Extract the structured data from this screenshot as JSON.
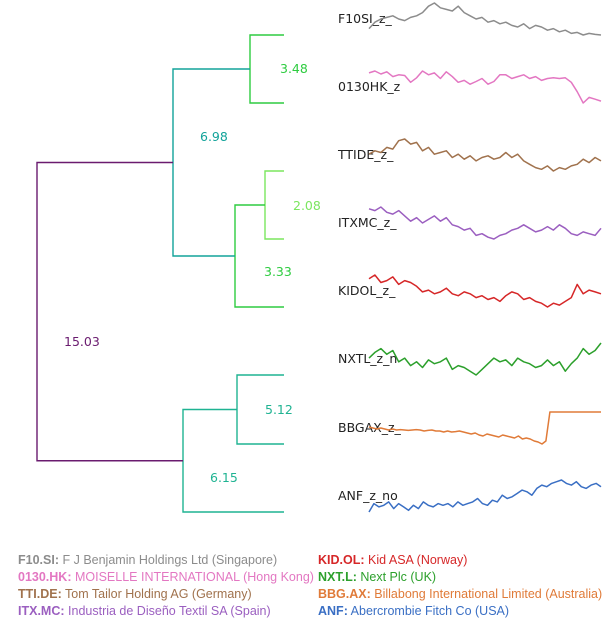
{
  "chart_data": {
    "type": "dendrogram",
    "leaves": [
      {
        "id": "F10.SI",
        "label": "F10SI_z_",
        "color": "#8c8c8c",
        "values": [
          0.2,
          0.4,
          0.5,
          0.55,
          0.6,
          0.5,
          0.45,
          0.55,
          0.6,
          0.7,
          0.9,
          1.0,
          0.85,
          0.8,
          0.75,
          0.9,
          0.7,
          0.6,
          0.5,
          0.55,
          0.4,
          0.45,
          0.35,
          0.4,
          0.3,
          0.25,
          0.35,
          0.2,
          0.3,
          0.25,
          0.15,
          0.2,
          0.1,
          0.15,
          0.05,
          0.08,
          0.0,
          0.05,
          0.02,
          0.0
        ]
      },
      {
        "id": "0130.HK",
        "label": "0130HK_z",
        "color": "#e377c2",
        "values": [
          0.85,
          0.9,
          0.82,
          0.88,
          0.75,
          0.8,
          0.78,
          0.6,
          0.72,
          0.9,
          0.8,
          0.85,
          0.7,
          0.88,
          0.75,
          0.6,
          0.65,
          0.55,
          0.62,
          0.7,
          0.55,
          0.62,
          0.8,
          0.8,
          0.7,
          0.75,
          0.8,
          0.7,
          0.75,
          0.65,
          0.7,
          0.72,
          0.7,
          0.72,
          0.6,
          0.35,
          0.05,
          0.2,
          0.15,
          0.1
        ]
      },
      {
        "id": "TTI.DE",
        "label": "TTIDE_z_",
        "color": "#a0724d",
        "values": [
          0.5,
          0.6,
          0.55,
          0.7,
          0.65,
          0.9,
          0.95,
          0.8,
          0.85,
          0.6,
          0.7,
          0.5,
          0.55,
          0.6,
          0.4,
          0.5,
          0.35,
          0.45,
          0.3,
          0.4,
          0.45,
          0.35,
          0.4,
          0.55,
          0.4,
          0.5,
          0.3,
          0.2,
          0.1,
          0.05,
          0.15,
          0.0,
          0.1,
          0.05,
          0.15,
          0.2,
          0.35,
          0.25,
          0.4,
          0.3
        ]
      },
      {
        "id": "ITX.MC",
        "label": "ITXMC_z_",
        "color": "#9b5fc0",
        "values": [
          0.9,
          0.85,
          0.95,
          0.8,
          0.75,
          0.85,
          0.7,
          0.55,
          0.65,
          0.5,
          0.6,
          0.7,
          0.55,
          0.65,
          0.45,
          0.4,
          0.3,
          0.35,
          0.15,
          0.2,
          0.1,
          0.05,
          0.15,
          0.2,
          0.3,
          0.35,
          0.45,
          0.35,
          0.25,
          0.3,
          0.4,
          0.3,
          0.45,
          0.35,
          0.2,
          0.15,
          0.25,
          0.2,
          0.15,
          0.35
        ]
      },
      {
        "id": "KID.OL",
        "label": "KIDOL_z_",
        "color": "#d62728",
        "values": [
          0.85,
          0.95,
          0.75,
          0.8,
          0.9,
          0.7,
          0.8,
          0.75,
          0.65,
          0.5,
          0.55,
          0.45,
          0.5,
          0.6,
          0.45,
          0.4,
          0.5,
          0.45,
          0.35,
          0.4,
          0.3,
          0.35,
          0.25,
          0.4,
          0.5,
          0.45,
          0.3,
          0.35,
          0.25,
          0.2,
          0.1,
          0.2,
          0.15,
          0.25,
          0.35,
          0.7,
          0.45,
          0.55,
          0.5,
          0.45
        ]
      },
      {
        "id": "NXT.L",
        "label": "NXTL_z_n",
        "color": "#2ca02c",
        "values": [
          0.55,
          0.7,
          0.8,
          0.65,
          0.75,
          0.45,
          0.55,
          0.35,
          0.45,
          0.3,
          0.5,
          0.4,
          0.45,
          0.55,
          0.25,
          0.35,
          0.3,
          0.2,
          0.1,
          0.25,
          0.4,
          0.55,
          0.45,
          0.5,
          0.35,
          0.55,
          0.45,
          0.4,
          0.3,
          0.35,
          0.5,
          0.35,
          0.45,
          0.2,
          0.4,
          0.55,
          0.8,
          0.65,
          0.75,
          0.95
        ]
      },
      {
        "id": "BBG.AX",
        "label": "BBGAX_z_",
        "color": "#e07b39",
        "values": [
          0.25,
          0.2,
          0.15,
          0.2,
          0.15,
          0.1,
          0.15,
          0.1,
          0.12,
          0.1,
          0.08,
          0.1,
          0.12,
          0.1,
          0.05,
          0.08,
          0.1,
          0.05,
          0.05,
          0.0,
          0.05,
          0.0,
          0.02,
          0.05,
          0.0,
          -0.05,
          -0.1,
          -0.05,
          -0.15,
          -0.2,
          -0.1,
          -0.15,
          -0.2,
          -0.25,
          -0.15,
          -0.2,
          -0.25,
          -0.3,
          -0.2,
          -0.35,
          -0.3,
          -0.35,
          -0.45,
          -0.5,
          -0.6,
          -0.45,
          1.0,
          1.0,
          1.0,
          1.0,
          1.0,
          1.0,
          1.0,
          1.0,
          1.0,
          1.0,
          1.0,
          1.0,
          1.0,
          1.0
        ]
      },
      {
        "id": "ANF",
        "label": "ANF_z_no",
        "color": "#3a6fc4",
        "values": [
          0.05,
          0.3,
          0.2,
          0.25,
          0.35,
          0.15,
          0.3,
          0.2,
          0.1,
          0.25,
          0.15,
          0.35,
          0.25,
          0.2,
          0.3,
          0.25,
          0.3,
          0.2,
          0.35,
          0.25,
          0.3,
          0.35,
          0.45,
          0.3,
          0.25,
          0.4,
          0.35,
          0.55,
          0.45,
          0.5,
          0.6,
          0.7,
          0.65,
          0.55,
          0.75,
          0.85,
          0.8,
          0.9,
          0.95,
          1.0,
          0.9,
          0.85,
          0.95,
          0.8,
          0.75,
          0.85,
          0.9,
          0.8
        ]
      }
    ],
    "merges": [
      {
        "label": "3.48",
        "color": "#2ecc40",
        "left": "F10.SI",
        "right": "0130.HK"
      },
      {
        "label": "2.08",
        "color": "#7be65f",
        "left": "TTI.DE",
        "right": "ITX.MC"
      },
      {
        "label": "3.33",
        "color": "#2ecc40",
        "left": "m2",
        "right": "KID.OL"
      },
      {
        "label": "6.98",
        "color": "#12a39a",
        "left": "m1",
        "right": "m3"
      },
      {
        "label": "5.12",
        "color": "#1fb392",
        "left": "NXT.L",
        "right": "BBG.AX"
      },
      {
        "label": "6.15",
        "color": "#1fb392",
        "left": "m5",
        "right": "ANF"
      },
      {
        "label": "15.03",
        "color": "#6a1b6f",
        "left": "m4",
        "right": "m6"
      }
    ]
  },
  "legend": {
    "left": [
      {
        "code": "F10.SI:",
        "name": "F J Benjamin Holdings Ltd (Singapore)",
        "color": "#8c8c8c"
      },
      {
        "code": "0130.HK:",
        "name": "MOISELLE INTERNATIONAL (Hong Kong)",
        "color": "#e377c2"
      },
      {
        "code": "TTI.DE:",
        "name": "Tom Tailor Holding AG (Germany)",
        "color": "#a0724d"
      },
      {
        "code": "ITX.MC:",
        "name": "Industria de Diseño Textil SA (Spain)",
        "color": "#9b5fc0"
      }
    ],
    "right": [
      {
        "code": "KID.OL:",
        "name": "Kid ASA (Norway)",
        "color": "#d62728"
      },
      {
        "code": "NXT.L:",
        "name": "Next Plc (UK)",
        "color": "#2ca02c"
      },
      {
        "code": "BBG.AX:",
        "name": "Billabong International Limited (Australia)",
        "color": "#e07b39"
      },
      {
        "code": "ANF:",
        "name": "Abercrombie Fitch Co (USA)",
        "color": "#3a6fc4"
      }
    ]
  }
}
